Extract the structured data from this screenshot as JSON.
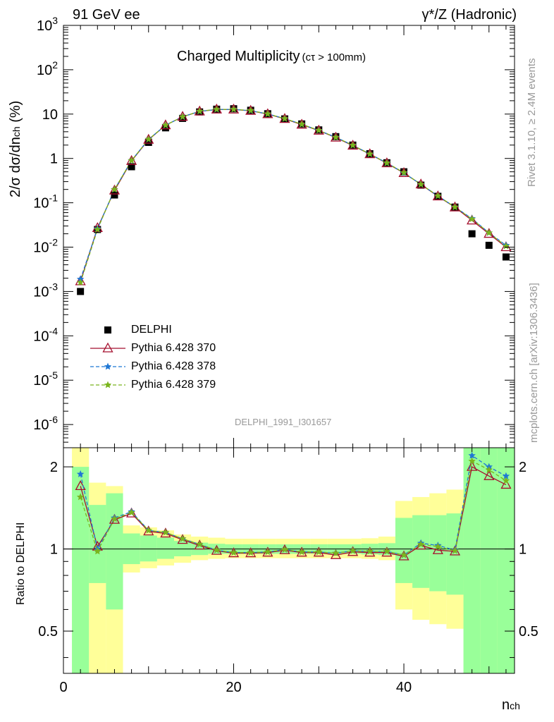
{
  "header": {
    "left": "91 GeV ee",
    "right": "γ*/Z (Hadronic)"
  },
  "plot_title": {
    "main": "Charged Multiplicity",
    "cut": "(cτ > 100mm)"
  },
  "side_text": {
    "rivet": "Rivet 3.1.10, ≥ 2.4M events",
    "mcplots": "mcplots.cern.ch [arXiv:1306.3436]"
  },
  "analysis_label": "DELPHI_1991_I301657",
  "ylabel_main": {
    "prefix": "2/σ dσ/dn",
    "sub": "ch",
    "suffix": " (%)"
  },
  "ylabel_ratio": "Ratio to DELPHI",
  "xlabel": {
    "main": "n",
    "sub": "ch"
  },
  "legend": [
    {
      "label": "DELPHI",
      "color": "#000000",
      "marker": "square"
    },
    {
      "label": "Pythia 6.428 370",
      "color": "#a50f2d",
      "marker": "triangle",
      "line": "solid"
    },
    {
      "label": "Pythia 6.428 378",
      "color": "#1f77d4",
      "marker": "star",
      "line": "dashed"
    },
    {
      "label": "Pythia 6.428 379",
      "color": "#7ab51d",
      "marker": "star",
      "line": "dashed"
    }
  ],
  "chart_data": [
    {
      "type": "scatter",
      "panel": "main",
      "ylog": true,
      "xlim": [
        0,
        53
      ],
      "ylim": [
        3e-07,
        1000
      ],
      "y_ticks": [
        "10^3",
        "10^2",
        "10",
        "1",
        "10^-1",
        "10^-2",
        "10^-3",
        "10^-4",
        "10^-5",
        "10^-6"
      ],
      "x": [
        2,
        4,
        6,
        8,
        10,
        12,
        14,
        16,
        18,
        20,
        22,
        24,
        26,
        28,
        30,
        32,
        34,
        36,
        38,
        40,
        42,
        44,
        46,
        48,
        50,
        52
      ],
      "series": [
        {
          "name": "DELPHI",
          "values": [
            0.001,
            0.025,
            0.15,
            0.65,
            2.3,
            4.9,
            8.0,
            11.2,
            12.9,
            13.2,
            12.2,
            10.2,
            7.8,
            6.0,
            4.4,
            3.1,
            2.0,
            1.28,
            0.8,
            0.5,
            0.25,
            0.14,
            0.08,
            0.02,
            0.011,
            0.006
          ]
        },
        {
          "name": "Pythia 6.428 370",
          "values": [
            0.0017,
            0.027,
            0.19,
            0.88,
            2.65,
            5.6,
            8.7,
            11.5,
            12.7,
            12.7,
            11.9,
            10.0,
            7.8,
            5.8,
            4.25,
            2.95,
            1.95,
            1.25,
            0.78,
            0.47,
            0.26,
            0.14,
            0.079,
            0.04,
            0.02,
            0.01
          ]
        },
        {
          "name": "Pythia 6.428 378",
          "values": [
            0.0019,
            0.026,
            0.2,
            0.9,
            2.7,
            5.6,
            8.7,
            11.5,
            12.7,
            12.8,
            11.9,
            10.1,
            7.9,
            5.9,
            4.3,
            3.0,
            1.98,
            1.26,
            0.79,
            0.47,
            0.26,
            0.143,
            0.08,
            0.044,
            0.021,
            0.011
          ]
        },
        {
          "name": "Pythia 6.428 379",
          "values": [
            0.0016,
            0.025,
            0.2,
            0.9,
            2.7,
            5.6,
            8.7,
            11.6,
            12.8,
            12.8,
            12.0,
            10.1,
            7.9,
            5.9,
            4.3,
            3.0,
            1.98,
            1.26,
            0.79,
            0.48,
            0.26,
            0.143,
            0.08,
            0.043,
            0.021,
            0.0105
          ]
        }
      ]
    },
    {
      "type": "line",
      "panel": "ratio",
      "ylog": true,
      "xlim": [
        0,
        53
      ],
      "ylim": [
        0.35,
        2.35
      ],
      "x_ticks": [
        "0",
        "20",
        "40"
      ],
      "y_ticks": [
        "0.5",
        "1",
        "2"
      ],
      "x": [
        2,
        4,
        6,
        8,
        10,
        12,
        14,
        16,
        18,
        20,
        22,
        24,
        26,
        28,
        30,
        32,
        34,
        36,
        38,
        40,
        42,
        44,
        46,
        48,
        50,
        52
      ],
      "series": [
        {
          "name": "Pythia 6.428 370",
          "values": [
            1.7,
            1.02,
            1.28,
            1.35,
            1.16,
            1.14,
            1.08,
            1.03,
            0.985,
            0.965,
            0.965,
            0.97,
            0.99,
            0.97,
            0.97,
            0.95,
            0.975,
            0.97,
            0.97,
            0.94,
            1.03,
            0.99,
            0.98,
            2.0,
            1.85,
            1.72
          ]
        },
        {
          "name": "Pythia 6.428 378",
          "values": [
            1.88,
            1.0,
            1.3,
            1.37,
            1.17,
            1.15,
            1.09,
            1.04,
            0.99,
            0.97,
            0.97,
            0.975,
            0.995,
            0.975,
            0.975,
            0.965,
            0.985,
            0.98,
            0.98,
            0.95,
            1.05,
            1.03,
            0.99,
            2.2,
            2.0,
            1.85
          ]
        },
        {
          "name": "Pythia 6.428 379",
          "values": [
            1.55,
            0.98,
            1.29,
            1.36,
            1.17,
            1.15,
            1.09,
            1.04,
            0.99,
            0.97,
            0.97,
            0.975,
            0.995,
            0.975,
            0.975,
            0.965,
            0.985,
            0.98,
            0.98,
            0.95,
            1.04,
            1.02,
            0.985,
            2.1,
            1.95,
            1.78
          ]
        }
      ],
      "bands": {
        "edges": [
          1,
          3,
          5,
          7,
          9,
          11,
          13,
          15,
          17,
          19,
          21,
          23,
          25,
          27,
          29,
          31,
          33,
          35,
          37,
          39,
          41,
          43,
          45,
          47,
          49,
          51,
          53
        ],
        "inner": [
          [
            0.2,
            2.0
          ],
          [
            0.75,
            1.45
          ],
          [
            0.6,
            1.6
          ],
          [
            0.88,
            1.14
          ],
          [
            0.9,
            1.12
          ],
          [
            0.92,
            1.1
          ],
          [
            0.94,
            1.07
          ],
          [
            0.95,
            1.055
          ],
          [
            0.96,
            1.045
          ],
          [
            0.96,
            1.04
          ],
          [
            0.96,
            1.04
          ],
          [
            0.96,
            1.04
          ],
          [
            0.96,
            1.04
          ],
          [
            0.96,
            1.04
          ],
          [
            0.96,
            1.04
          ],
          [
            0.96,
            1.04
          ],
          [
            0.96,
            1.04
          ],
          [
            0.955,
            1.045
          ],
          [
            0.95,
            1.05
          ],
          [
            0.75,
            1.3
          ],
          [
            0.72,
            1.33
          ],
          [
            0.7,
            1.33
          ],
          [
            0.68,
            1.35
          ],
          [
            0.2,
            5.0
          ],
          [
            0.2,
            5.0
          ],
          [
            0.2,
            5.0
          ]
        ],
        "outer": [
          [
            0.2,
            5.0
          ],
          [
            0.2,
            1.75
          ],
          [
            0.2,
            1.7
          ],
          [
            0.82,
            1.22
          ],
          [
            0.85,
            1.2
          ],
          [
            0.87,
            1.17
          ],
          [
            0.89,
            1.13
          ],
          [
            0.91,
            1.11
          ],
          [
            0.92,
            1.1
          ],
          [
            0.925,
            1.09
          ],
          [
            0.925,
            1.09
          ],
          [
            0.925,
            1.09
          ],
          [
            0.925,
            1.09
          ],
          [
            0.925,
            1.09
          ],
          [
            0.925,
            1.09
          ],
          [
            0.925,
            1.09
          ],
          [
            0.925,
            1.09
          ],
          [
            0.92,
            1.095
          ],
          [
            0.91,
            1.11
          ],
          [
            0.6,
            1.5
          ],
          [
            0.55,
            1.55
          ],
          [
            0.53,
            1.6
          ],
          [
            0.51,
            1.65
          ],
          [
            0.2,
            5.0
          ],
          [
            0.2,
            5.0
          ],
          [
            0.2,
            5.0
          ]
        ]
      }
    }
  ]
}
